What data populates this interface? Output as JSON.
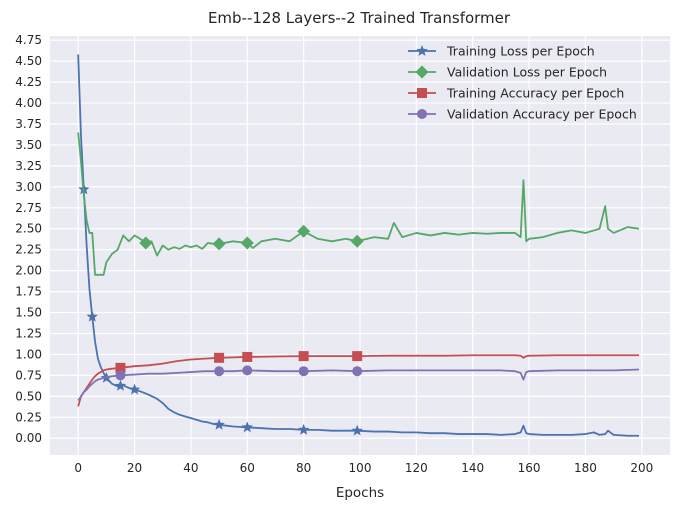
{
  "chart_data": {
    "type": "line",
    "title": "Emb--128 Layers--2 Trained Transformer",
    "xlabel": "Epochs",
    "ylabel": "",
    "xlim": [
      -10,
      210
    ],
    "ylim": [
      -0.2,
      4.8
    ],
    "xticks": [
      0,
      20,
      40,
      60,
      80,
      100,
      120,
      140,
      160,
      180,
      200
    ],
    "yticks": [
      0.0,
      0.25,
      0.5,
      0.75,
      1.0,
      1.25,
      1.5,
      1.75,
      2.0,
      2.25,
      2.5,
      2.75,
      3.0,
      3.25,
      3.5,
      3.75,
      4.0,
      4.25,
      4.5,
      4.75
    ],
    "ytick_labels": [
      "0.00",
      "0.25",
      "0.50",
      "0.75",
      "1.00",
      "1.25",
      "1.50",
      "1.75",
      "2.00",
      "2.25",
      "2.50",
      "2.75",
      "3.00",
      "3.25",
      "3.50",
      "3.75",
      "4.00",
      "4.25",
      "4.50",
      "4.75"
    ],
    "grid": true,
    "legend_position": "top-right",
    "series": [
      {
        "name": "Training Loss per Epoch",
        "color": "#4c72b0",
        "marker": "star",
        "markevery": [
          2,
          5,
          10,
          15,
          20,
          50,
          60,
          80,
          99
        ],
        "x": [
          0,
          1,
          2,
          3,
          4,
          5,
          6,
          7,
          8,
          9,
          10,
          12,
          14,
          16,
          18,
          20,
          22,
          25,
          28,
          30,
          32,
          34,
          36,
          38,
          40,
          42,
          44,
          46,
          48,
          50,
          55,
          60,
          65,
          70,
          75,
          80,
          85,
          90,
          95,
          99,
          105,
          110,
          115,
          120,
          125,
          130,
          135,
          140,
          145,
          150,
          155,
          157,
          158,
          159,
          160,
          165,
          170,
          175,
          180,
          183,
          185,
          187,
          188,
          190,
          195,
          199
        ],
        "values": [
          4.58,
          3.6,
          2.97,
          2.3,
          1.78,
          1.45,
          1.15,
          0.95,
          0.85,
          0.78,
          0.72,
          0.65,
          0.62,
          0.63,
          0.6,
          0.58,
          0.56,
          0.52,
          0.47,
          0.42,
          0.35,
          0.31,
          0.28,
          0.26,
          0.24,
          0.22,
          0.2,
          0.19,
          0.17,
          0.16,
          0.14,
          0.13,
          0.12,
          0.11,
          0.11,
          0.1,
          0.1,
          0.09,
          0.09,
          0.09,
          0.08,
          0.08,
          0.07,
          0.07,
          0.06,
          0.06,
          0.05,
          0.05,
          0.05,
          0.04,
          0.05,
          0.07,
          0.15,
          0.06,
          0.05,
          0.04,
          0.04,
          0.04,
          0.05,
          0.07,
          0.04,
          0.05,
          0.09,
          0.04,
          0.03,
          0.03
        ]
      },
      {
        "name": "Validation Loss per Epoch",
        "color": "#55a868",
        "marker": "diamond",
        "markevery": [
          24,
          50,
          60,
          80,
          99
        ],
        "x": [
          0,
          1,
          2,
          3,
          4,
          5,
          6,
          7,
          8,
          9,
          10,
          12,
          14,
          16,
          18,
          20,
          22,
          24,
          26,
          28,
          30,
          32,
          34,
          36,
          38,
          40,
          42,
          44,
          46,
          48,
          50,
          55,
          60,
          62,
          65,
          70,
          75,
          80,
          85,
          90,
          95,
          99,
          105,
          110,
          112,
          115,
          120,
          125,
          130,
          135,
          140,
          145,
          150,
          155,
          157,
          158,
          159,
          160,
          165,
          170,
          175,
          180,
          185,
          187,
          188,
          190,
          195,
          199
        ],
        "values": [
          3.65,
          3.3,
          2.9,
          2.6,
          2.45,
          2.45,
          1.95,
          1.95,
          1.95,
          1.95,
          2.1,
          2.2,
          2.25,
          2.42,
          2.35,
          2.42,
          2.38,
          2.33,
          2.35,
          2.18,
          2.3,
          2.25,
          2.28,
          2.26,
          2.3,
          2.28,
          2.3,
          2.26,
          2.33,
          2.32,
          2.32,
          2.35,
          2.33,
          2.27,
          2.35,
          2.38,
          2.35,
          2.47,
          2.38,
          2.35,
          2.38,
          2.35,
          2.4,
          2.38,
          2.57,
          2.4,
          2.45,
          2.42,
          2.45,
          2.43,
          2.45,
          2.44,
          2.45,
          2.45,
          2.4,
          3.08,
          2.35,
          2.38,
          2.4,
          2.45,
          2.48,
          2.45,
          2.5,
          2.77,
          2.5,
          2.45,
          2.52,
          2.5
        ]
      },
      {
        "name": "Training Accuracy per Epoch",
        "color": "#c44e52",
        "marker": "square",
        "markevery": [
          15,
          50,
          60,
          80,
          99
        ],
        "x": [
          0,
          1,
          2,
          3,
          4,
          5,
          6,
          7,
          8,
          9,
          10,
          12,
          15,
          20,
          25,
          30,
          35,
          40,
          45,
          50,
          55,
          60,
          70,
          80,
          90,
          99,
          110,
          120,
          130,
          140,
          150,
          155,
          157,
          158,
          159,
          160,
          170,
          180,
          190,
          199
        ],
        "values": [
          0.38,
          0.5,
          0.55,
          0.6,
          0.65,
          0.7,
          0.74,
          0.77,
          0.79,
          0.81,
          0.82,
          0.83,
          0.84,
          0.86,
          0.87,
          0.89,
          0.92,
          0.94,
          0.95,
          0.96,
          0.965,
          0.97,
          0.975,
          0.98,
          0.98,
          0.98,
          0.985,
          0.985,
          0.985,
          0.99,
          0.99,
          0.99,
          0.985,
          0.96,
          0.98,
          0.985,
          0.99,
          0.99,
          0.99,
          0.99
        ]
      },
      {
        "name": "Validation Accuracy per Epoch",
        "color": "#8172b3",
        "marker": "circle",
        "markevery": [
          15,
          50,
          60,
          80,
          99
        ],
        "x": [
          0,
          1,
          2,
          3,
          4,
          5,
          6,
          7,
          8,
          9,
          10,
          12,
          15,
          20,
          25,
          30,
          35,
          40,
          45,
          50,
          55,
          60,
          70,
          80,
          90,
          99,
          110,
          120,
          130,
          140,
          150,
          155,
          157,
          158,
          159,
          160,
          170,
          180,
          190,
          199
        ],
        "values": [
          0.45,
          0.5,
          0.55,
          0.58,
          0.62,
          0.65,
          0.68,
          0.7,
          0.71,
          0.72,
          0.73,
          0.74,
          0.75,
          0.76,
          0.77,
          0.77,
          0.78,
          0.79,
          0.8,
          0.8,
          0.8,
          0.81,
          0.8,
          0.8,
          0.81,
          0.8,
          0.81,
          0.81,
          0.81,
          0.81,
          0.81,
          0.8,
          0.78,
          0.7,
          0.79,
          0.8,
          0.81,
          0.81,
          0.81,
          0.82
        ]
      }
    ]
  },
  "colors": {
    "plot_background": "#eaeaf2",
    "grid": "#ffffff",
    "text": "#262626"
  }
}
